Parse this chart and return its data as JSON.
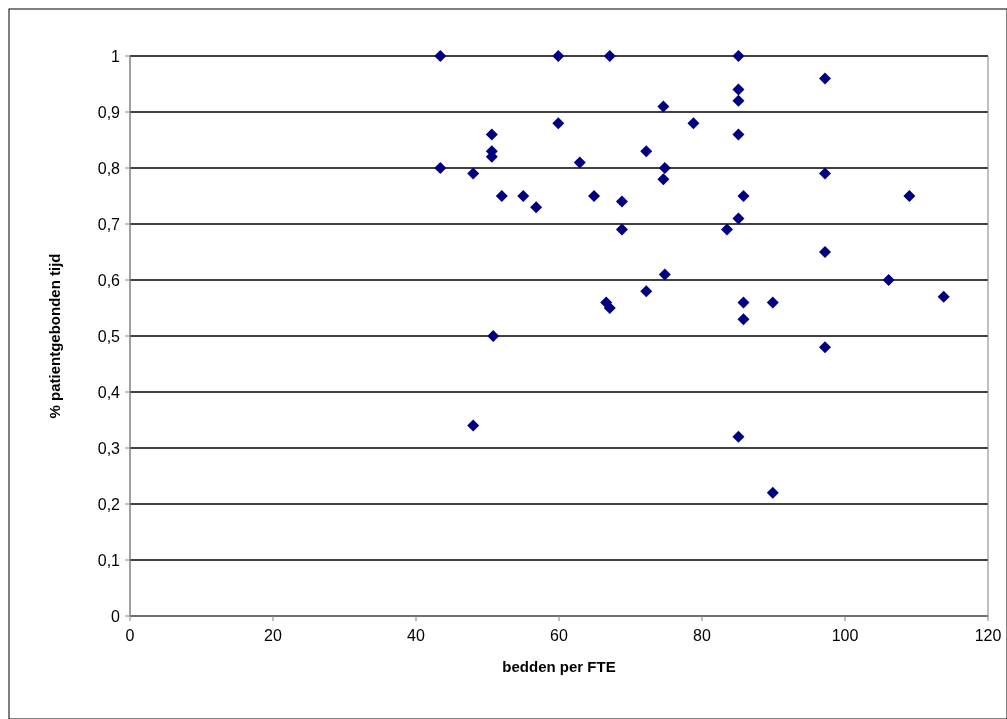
{
  "chart_data": {
    "type": "scatter",
    "xlabel": "bedden per FTE",
    "ylabel": "% patientgebonden tijd",
    "marker": "diamond",
    "grid": "y",
    "xlim": [
      0,
      120
    ],
    "xticks": [
      0,
      20,
      40,
      60,
      80,
      100,
      120
    ],
    "ylim": [
      0,
      1
    ],
    "yticks": [
      {
        "value": 0,
        "label": "0"
      },
      {
        "value": 0.1,
        "label": "0,1"
      },
      {
        "value": 0.2,
        "label": "0,2"
      },
      {
        "value": 0.3,
        "label": "0,3"
      },
      {
        "value": 0.4,
        "label": "0,4"
      },
      {
        "value": 0.5,
        "label": "0,5"
      },
      {
        "value": 0.6,
        "label": "0,6"
      },
      {
        "value": 0.7,
        "label": "0,7"
      },
      {
        "value": 0.8,
        "label": "0,8"
      },
      {
        "value": 0.9,
        "label": "0,9"
      },
      {
        "value": 1,
        "label": "1"
      }
    ],
    "series": [
      {
        "color": "#000080",
        "x": [
          43.4,
          43.4,
          48,
          48,
          50.6,
          50.6,
          50.6,
          50.8,
          52,
          55,
          56.8,
          59.9,
          59.9,
          62.9,
          64.9,
          67.1,
          68.8,
          68.8,
          66.6,
          67.1,
          72.2,
          72.2,
          74.6,
          74.8,
          74.6,
          74.8,
          78.8,
          83.5,
          85.1,
          85.1,
          85.1,
          85.1,
          85.1,
          85.1,
          85.8,
          85.8,
          85.8,
          89.9,
          89.9,
          97.2,
          97.2,
          97.2,
          97.2,
          106.1,
          109,
          113.8
        ],
        "values": [
          1,
          0.8,
          0.79,
          0.34,
          0.86,
          0.83,
          0.82,
          0.5,
          0.75,
          0.75,
          0.73,
          1,
          0.88,
          0.81,
          0.75,
          1,
          0.74,
          0.69,
          0.56,
          0.55,
          0.83,
          0.58,
          0.91,
          0.8,
          0.78,
          0.61,
          0.88,
          0.69,
          1,
          0.94,
          0.92,
          0.86,
          0.71,
          0.32,
          0.75,
          0.56,
          0.53,
          0.56,
          0.22,
          0.96,
          0.79,
          0.65,
          0.48,
          0.6,
          0.75,
          0.57
        ]
      }
    ]
  }
}
